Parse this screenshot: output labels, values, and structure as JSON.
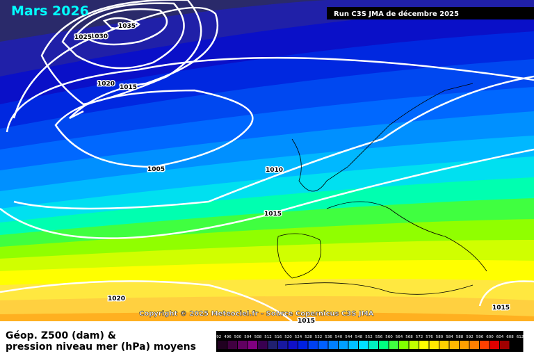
{
  "header": {
    "title": "Mars 2026",
    "run": "Run C3S JMA de décembre 2025"
  },
  "isobar_labels": [
    "1035",
    "1030",
    "1025",
    "1020",
    "1015",
    "1005",
    "1010",
    "1015",
    "1020",
    "1015",
    "1015"
  ],
  "copyright": "Copyright © 2025 Meteociel.fr - Source Copernicus C3S JMA",
  "legend": {
    "title_lines": [
      "Géop. Z500 (dam) &",
      "pression niveau mer (hPa) moyens"
    ],
    "scale": [
      492,
      496,
      500,
      504,
      508,
      512,
      516,
      520,
      524,
      528,
      532,
      536,
      540,
      544,
      548,
      552,
      556,
      560,
      564,
      568,
      572,
      576,
      580,
      584,
      588,
      592,
      596,
      600,
      604,
      608,
      612
    ],
    "colors": [
      "#200020",
      "#400040",
      "#600060",
      "#800080",
      "#380050",
      "#202070",
      "#1818a0",
      "#1010c8",
      "#0020e0",
      "#0040f0",
      "#0060ff",
      "#0080ff",
      "#00a0ff",
      "#00c0ff",
      "#00e0ff",
      "#00f0c0",
      "#00ff80",
      "#40ff40",
      "#80ff00",
      "#c0ff00",
      "#ffff00",
      "#ffe800",
      "#ffd000",
      "#ffb800",
      "#ffa000",
      "#ff8000",
      "#ff4000",
      "#e00000",
      "#a00000",
      "#000000"
    ]
  }
}
